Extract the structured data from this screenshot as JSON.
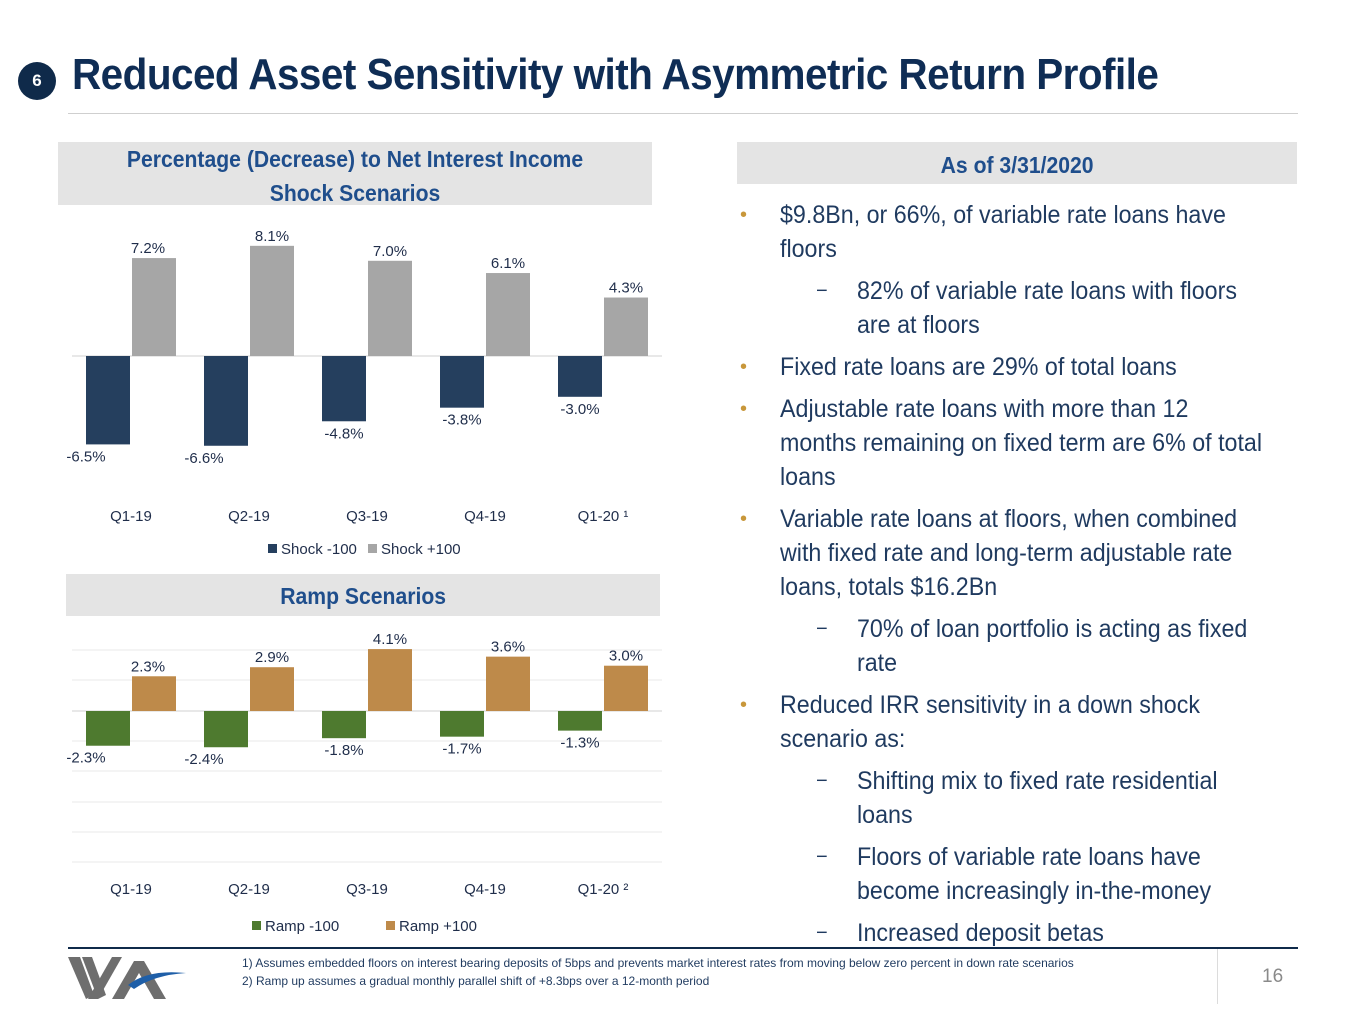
{
  "header": {
    "section_number": "6",
    "title": "Reduced Asset Sensitivity with Asymmetric Return Profile"
  },
  "shock_panel": {
    "title_line1": "Percentage (Decrease) to Net Interest Income",
    "title_line2": "Shock Scenarios"
  },
  "ramp_panel": {
    "title": "Ramp Scenarios"
  },
  "asof_panel": {
    "title": "As of 3/31/2020"
  },
  "chart_data": [
    {
      "type": "bar",
      "categories": [
        "Q1-19",
        "Q2-19",
        "Q3-19",
        "Q4-19",
        "Q1-20 ¹"
      ],
      "series": [
        {
          "name": "Shock -100",
          "values": [
            -6.5,
            -6.6,
            -4.8,
            -3.8,
            -3.0
          ],
          "labels": [
            "-6.5%",
            "-6.6%",
            "-4.8%",
            "-3.8%",
            "-3.0%"
          ],
          "color": "#253f5e"
        },
        {
          "name": "Shock +100",
          "values": [
            7.2,
            8.1,
            7.0,
            6.1,
            4.3
          ],
          "labels": [
            "7.2%",
            "8.1%",
            "7.0%",
            "6.1%",
            "4.3%"
          ],
          "color": "#a6a6a6"
        }
      ],
      "legend": "bottom",
      "grid": false
    },
    {
      "type": "bar",
      "categories": [
        "Q1-19",
        "Q2-19",
        "Q3-19",
        "Q4-19",
        "Q1-20 ²"
      ],
      "series": [
        {
          "name": "Ramp -100",
          "values": [
            -2.3,
            -2.4,
            -1.8,
            -1.7,
            -1.3
          ],
          "labels": [
            "-2.3%",
            "-2.4%",
            "-1.8%",
            "-1.7%",
            "-1.3%"
          ],
          "color": "#4e7a2f"
        },
        {
          "name": "Ramp +100",
          "values": [
            2.3,
            2.9,
            4.1,
            3.6,
            3.0
          ],
          "labels": [
            "2.3%",
            "2.9%",
            "4.1%",
            "3.6%",
            "3.0%"
          ],
          "color": "#be8a4a"
        }
      ],
      "legend": "bottom",
      "grid": true
    }
  ],
  "bullets": [
    {
      "level": 1,
      "text": "$9.8Bn, or 66%, of variable rate loans have floors"
    },
    {
      "level": 2,
      "text": "82% of variable rate loans with floors are at floors"
    },
    {
      "level": 1,
      "text": "Fixed rate loans are 29% of total loans"
    },
    {
      "level": 1,
      "text": "Adjustable rate loans with more than 12 months remaining on fixed term are 6% of total loans"
    },
    {
      "level": 1,
      "text": "Variable rate loans at floors, when combined with fixed rate and long-term adjustable rate loans, totals $16.2Bn"
    },
    {
      "level": 2,
      "text": "70% of loan portfolio is acting as fixed rate"
    },
    {
      "level": 1,
      "text": "Reduced IRR sensitivity in a down shock scenario as:"
    },
    {
      "level": 2,
      "text": "Shifting mix to fixed rate residential loans"
    },
    {
      "level": 2,
      "text": "Floors of variable rate loans have become increasingly in-the-money"
    },
    {
      "level": 2,
      "text": "Increased deposit betas"
    }
  ],
  "bullet_markers": {
    "level1": "•",
    "level2": "−"
  },
  "footnotes": {
    "note1": "1)    Assumes embedded floors on interest bearing deposits of 5bps and prevents market interest rates from moving below zero percent in down rate scenarios",
    "note2": "2)    Ramp up assumes a gradual monthly parallel shift of +8.3bps over a 12-month period"
  },
  "page_number": "16",
  "logo": {
    "icon": "company-logo-icon",
    "colors": [
      "#6e6e6e",
      "#1f5fa8"
    ]
  }
}
